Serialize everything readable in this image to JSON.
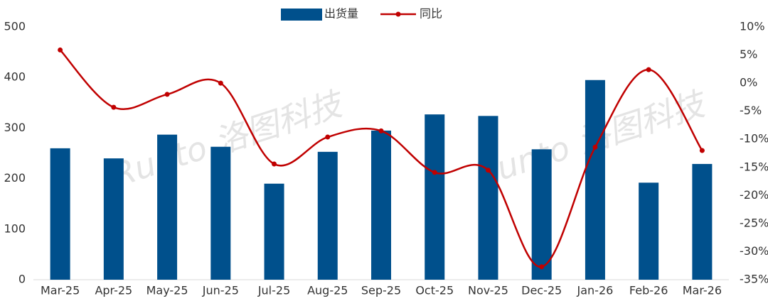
{
  "chart_data": {
    "type": "bar-line",
    "watermark": "Runto 洛图科技",
    "categories": [
      "Mar-25",
      "Apr-25",
      "May-25",
      "Jun-25",
      "Jul-25",
      "Aug-25",
      "Sep-25",
      "Oct-25",
      "Nov-25",
      "Dec-25",
      "Jan-26",
      "Feb-26",
      "Mar-26"
    ],
    "series": [
      {
        "name": "出货量",
        "type": "bar",
        "color": "#00508c",
        "values": [
          260,
          240,
          287,
          263,
          190,
          253,
          295,
          327,
          324,
          258,
          395,
          192,
          229
        ]
      },
      {
        "name": "同比",
        "type": "line",
        "axis": "y2",
        "color": "#c00000",
        "values": [
          5.9,
          -4.3,
          -2.0,
          0,
          -14.4,
          -9.6,
          -8.5,
          -15.9,
          -15.5,
          -32.7,
          -11.4,
          2.4,
          -12.0
        ]
      }
    ],
    "ylim": [
      0,
      500
    ],
    "yticks": [
      0,
      100,
      200,
      300,
      400,
      500
    ],
    "y2lim": [
      -35,
      10
    ],
    "y2ticks": [
      {
        "value": -35,
        "label": "-35%"
      },
      {
        "value": -30,
        "label": "-30%"
      },
      {
        "value": -25,
        "label": "-25%"
      },
      {
        "value": -20,
        "label": "-20%"
      },
      {
        "value": -15,
        "label": "-15%"
      },
      {
        "value": -10,
        "label": "-10%"
      },
      {
        "value": -5,
        "label": "-5%"
      },
      {
        "value": 0,
        "label": "0%"
      },
      {
        "value": 5,
        "label": "5%"
      },
      {
        "value": 10,
        "label": "10%"
      }
    ],
    "legend": "top"
  }
}
